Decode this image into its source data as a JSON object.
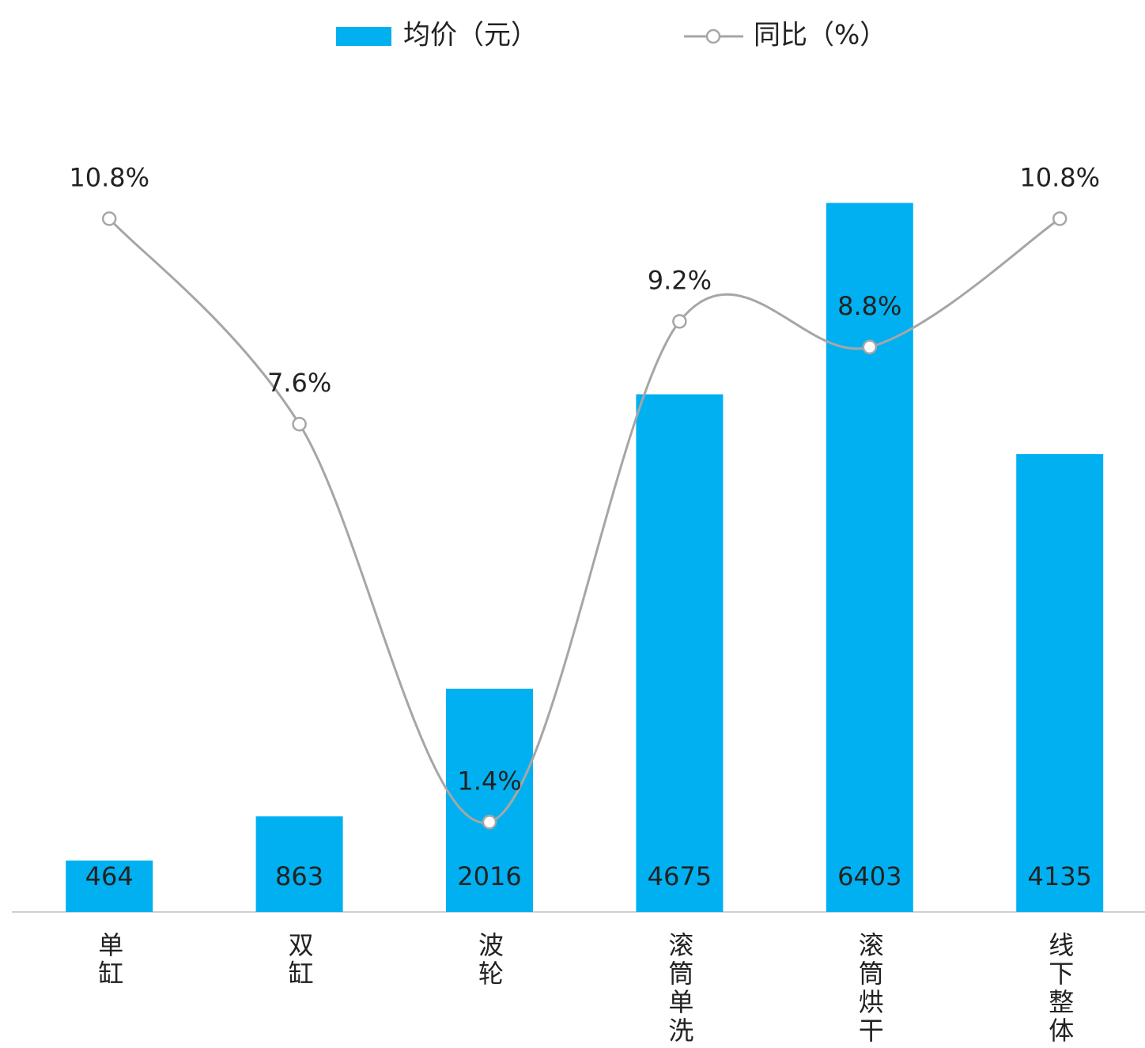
{
  "chart_data": {
    "type": "bar-line",
    "categories": [
      "单缸",
      "双缸",
      "波轮",
      "滚筒单洗",
      "滚筒烘干",
      "线下整体"
    ],
    "series": [
      {
        "name": "均价（元）",
        "type": "bar",
        "color": "#00b0f0",
        "values": [
          464,
          863,
          2016,
          4675,
          6403,
          4135
        ]
      },
      {
        "name": "同比（%）",
        "type": "line",
        "axis": "y2",
        "color": "#a6a6a6",
        "values": [
          10.8,
          7.6,
          1.4,
          9.2,
          8.8,
          10.8
        ],
        "value_labels": [
          "10.8%",
          "7.6%",
          "1.4%",
          "9.2%",
          "8.8%",
          "10.8%"
        ]
      }
    ],
    "ylim": [
      0,
      8000
    ],
    "y2lim": [
      0,
      13.8
    ],
    "legend": "top"
  }
}
